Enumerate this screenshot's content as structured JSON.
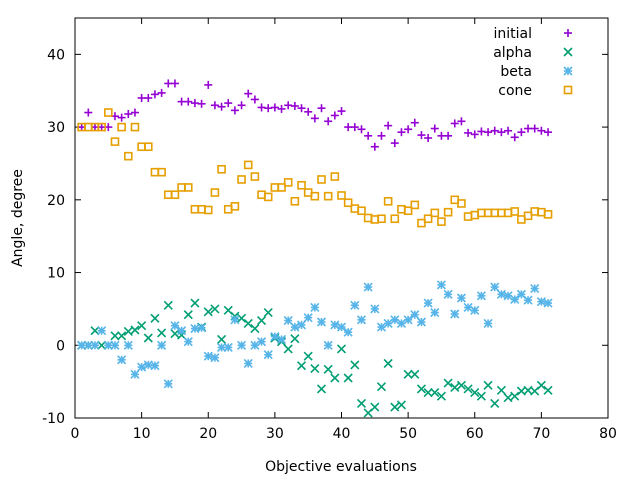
{
  "chart_data": {
    "type": "scatter",
    "title": "",
    "xlabel": "Objective evaluations",
    "ylabel": "Angle, degree",
    "xlim": [
      0,
      80
    ],
    "ylim": [
      -10,
      45
    ],
    "xticks": [
      0,
      10,
      20,
      30,
      40,
      50,
      60,
      70,
      80
    ],
    "yticks": [
      -10,
      0,
      10,
      20,
      30,
      40
    ],
    "grid": false,
    "legend_position": "top-right",
    "series": [
      {
        "name": "initial",
        "color": "#9400d3",
        "marker": "plus",
        "points": [
          [
            1,
            30
          ],
          [
            2,
            32
          ],
          [
            3,
            30
          ],
          [
            4,
            30
          ],
          [
            5,
            30
          ],
          [
            6,
            31.5
          ],
          [
            7,
            31.3
          ],
          [
            8,
            31.8
          ],
          [
            9,
            32
          ],
          [
            10,
            34
          ],
          [
            11,
            34
          ],
          [
            12,
            34.5
          ],
          [
            13,
            34.7
          ],
          [
            14,
            36
          ],
          [
            15,
            36
          ],
          [
            16,
            33.5
          ],
          [
            17,
            33.5
          ],
          [
            18,
            33.3
          ],
          [
            19,
            33.2
          ],
          [
            20,
            35.8
          ],
          [
            21,
            33
          ],
          [
            22,
            32.8
          ],
          [
            23,
            33.3
          ],
          [
            24,
            32.3
          ],
          [
            25,
            33
          ],
          [
            26,
            34.6
          ],
          [
            27,
            33.8
          ],
          [
            28,
            32.7
          ],
          [
            29,
            32.6
          ],
          [
            30,
            32.7
          ],
          [
            31,
            32.5
          ],
          [
            32,
            33
          ],
          [
            33,
            32.9
          ],
          [
            34,
            32.6
          ],
          [
            35,
            32.1
          ],
          [
            36,
            31.2
          ],
          [
            37,
            32.6
          ],
          [
            38,
            30.8
          ],
          [
            39,
            31.6
          ],
          [
            40,
            32.2
          ],
          [
            41,
            30
          ],
          [
            42,
            30
          ],
          [
            43,
            29.7
          ],
          [
            44,
            28.8
          ],
          [
            45,
            27.3
          ],
          [
            46,
            28.8
          ],
          [
            47,
            30.2
          ],
          [
            48,
            27.8
          ],
          [
            49,
            29.3
          ],
          [
            50,
            29.7
          ],
          [
            51,
            30.6
          ],
          [
            52,
            28.9
          ],
          [
            53,
            28.5
          ],
          [
            54,
            29.8
          ],
          [
            55,
            28.8
          ],
          [
            56,
            28.8
          ],
          [
            57,
            30.5
          ],
          [
            58,
            30.8
          ],
          [
            59,
            29.2
          ],
          [
            60,
            29
          ],
          [
            61,
            29.4
          ],
          [
            62,
            29.3
          ],
          [
            63,
            29.5
          ],
          [
            64,
            29.3
          ],
          [
            65,
            29.5
          ],
          [
            66,
            28.6
          ],
          [
            67,
            29.3
          ],
          [
            68,
            29.8
          ],
          [
            69,
            29.8
          ],
          [
            70,
            29.5
          ],
          [
            71,
            29.3
          ]
        ]
      },
      {
        "name": "alpha",
        "color": "#009e73",
        "marker": "x",
        "points": [
          [
            1,
            0
          ],
          [
            2,
            0
          ],
          [
            3,
            2
          ],
          [
            4,
            0
          ],
          [
            5,
            0
          ],
          [
            6,
            1.3
          ],
          [
            7,
            1.3
          ],
          [
            8,
            1.9
          ],
          [
            9,
            2.1
          ],
          [
            10,
            2.7
          ],
          [
            11,
            1
          ],
          [
            12,
            3.7
          ],
          [
            13,
            1.7
          ],
          [
            14,
            5.5
          ],
          [
            15,
            1.6
          ],
          [
            16,
            1.4
          ],
          [
            17,
            4.2
          ],
          [
            18,
            5.8
          ],
          [
            19,
            2.5
          ],
          [
            20,
            4.6
          ],
          [
            21,
            5
          ],
          [
            22,
            0.8
          ],
          [
            23,
            4.8
          ],
          [
            24,
            4
          ],
          [
            25,
            3.7
          ],
          [
            26,
            3
          ],
          [
            27,
            2.3
          ],
          [
            28,
            3.4
          ],
          [
            29,
            4.5
          ],
          [
            30,
            1
          ],
          [
            31,
            0.5
          ],
          [
            32,
            -0.5
          ],
          [
            33,
            0.9
          ],
          [
            34,
            -2.8
          ],
          [
            35,
            -1.5
          ],
          [
            36,
            -3.2
          ],
          [
            37,
            -6
          ],
          [
            38,
            -3.3
          ],
          [
            39,
            -4.5
          ],
          [
            40,
            -0.5
          ],
          [
            41,
            -4.5
          ],
          [
            42,
            -2.7
          ],
          [
            43,
            -8
          ],
          [
            44,
            -9.3
          ],
          [
            45,
            -8.5
          ],
          [
            46,
            -5.7
          ],
          [
            47,
            -2.5
          ],
          [
            48,
            -8.5
          ],
          [
            49,
            -8.2
          ],
          [
            50,
            -4
          ],
          [
            51,
            -4
          ],
          [
            52,
            -6
          ],
          [
            53,
            -6.5
          ],
          [
            54,
            -6.5
          ],
          [
            55,
            -7
          ],
          [
            56,
            -5.2
          ],
          [
            57,
            -5.8
          ],
          [
            58,
            -5.5
          ],
          [
            59,
            -6
          ],
          [
            60,
            -6.5
          ],
          [
            61,
            -7
          ],
          [
            62,
            -5.5
          ],
          [
            63,
            -8
          ],
          [
            64,
            -6.2
          ],
          [
            65,
            -7.2
          ],
          [
            66,
            -7
          ],
          [
            67,
            -6.3
          ],
          [
            68,
            -6.2
          ],
          [
            69,
            -6.3
          ],
          [
            70,
            -5.5
          ],
          [
            71,
            -6.2
          ]
        ]
      },
      {
        "name": "beta",
        "color": "#56b4e9",
        "marker": "star",
        "points": [
          [
            1,
            0
          ],
          [
            2,
            0
          ],
          [
            3,
            0
          ],
          [
            4,
            2
          ],
          [
            5,
            0
          ],
          [
            6,
            0
          ],
          [
            7,
            -2
          ],
          [
            8,
            0
          ],
          [
            9,
            -4
          ],
          [
            10,
            -3
          ],
          [
            11,
            -2.7
          ],
          [
            12,
            -2.8
          ],
          [
            13,
            0
          ],
          [
            14,
            -5.3
          ],
          [
            15,
            2.7
          ],
          [
            16,
            2
          ],
          [
            17,
            0.5
          ],
          [
            18,
            2.3
          ],
          [
            19,
            2.4
          ],
          [
            20,
            -1.5
          ],
          [
            21,
            -1.7
          ],
          [
            22,
            -0.3
          ],
          [
            23,
            -0.3
          ],
          [
            24,
            3.5
          ],
          [
            25,
            0
          ],
          [
            26,
            -2.5
          ],
          [
            27,
            0
          ],
          [
            28,
            0.5
          ],
          [
            29,
            -1.3
          ],
          [
            30,
            1.2
          ],
          [
            31,
            0.8
          ],
          [
            32,
            3.4
          ],
          [
            33,
            2.5
          ],
          [
            34,
            2.8
          ],
          [
            35,
            3.8
          ],
          [
            36,
            5.2
          ],
          [
            37,
            3.2
          ],
          [
            38,
            0
          ],
          [
            39,
            2.8
          ],
          [
            40,
            2.5
          ],
          [
            41,
            1.8
          ],
          [
            42,
            5.5
          ],
          [
            43,
            3.5
          ],
          [
            44,
            8
          ],
          [
            45,
            5
          ],
          [
            46,
            2.5
          ],
          [
            47,
            3
          ],
          [
            48,
            3.5
          ],
          [
            49,
            3
          ],
          [
            50,
            3.5
          ],
          [
            51,
            4.2
          ],
          [
            52,
            3.2
          ],
          [
            53,
            5.8
          ],
          [
            54,
            4.5
          ],
          [
            55,
            8.3
          ],
          [
            56,
            7
          ],
          [
            57,
            4.3
          ],
          [
            58,
            6.5
          ],
          [
            59,
            5.2
          ],
          [
            60,
            4.8
          ],
          [
            61,
            6.8
          ],
          [
            62,
            3
          ],
          [
            63,
            8
          ],
          [
            64,
            7
          ],
          [
            65,
            6.8
          ],
          [
            66,
            6.3
          ],
          [
            67,
            7
          ],
          [
            68,
            6.2
          ],
          [
            69,
            7.8
          ],
          [
            70,
            6
          ],
          [
            71,
            5.8
          ]
        ]
      },
      {
        "name": "cone",
        "color": "#e69f00",
        "marker": "square",
        "points": [
          [
            1,
            30
          ],
          [
            2,
            30
          ],
          [
            3,
            30
          ],
          [
            4,
            30
          ],
          [
            5,
            32
          ],
          [
            6,
            28
          ],
          [
            7,
            30
          ],
          [
            8,
            26
          ],
          [
            9,
            30
          ],
          [
            10,
            27.3
          ],
          [
            11,
            27.3
          ],
          [
            12,
            23.8
          ],
          [
            13,
            23.8
          ],
          [
            14,
            20.7
          ],
          [
            15,
            20.7
          ],
          [
            16,
            21.7
          ],
          [
            17,
            21.7
          ],
          [
            18,
            18.7
          ],
          [
            19,
            18.7
          ],
          [
            20,
            18.6
          ],
          [
            21,
            21
          ],
          [
            22,
            24.2
          ],
          [
            23,
            18.7
          ],
          [
            24,
            19.1
          ],
          [
            25,
            22.8
          ],
          [
            26,
            24.8
          ],
          [
            27,
            23.2
          ],
          [
            28,
            20.7
          ],
          [
            29,
            20.4
          ],
          [
            30,
            21.7
          ],
          [
            31,
            21.7
          ],
          [
            32,
            22.4
          ],
          [
            33,
            19.8
          ],
          [
            34,
            22
          ],
          [
            35,
            21
          ],
          [
            36,
            20.5
          ],
          [
            37,
            22.8
          ],
          [
            38,
            20.5
          ],
          [
            39,
            23.2
          ],
          [
            40,
            20.6
          ],
          [
            41,
            19.6
          ],
          [
            42,
            18.8
          ],
          [
            43,
            18.5
          ],
          [
            44,
            17.5
          ],
          [
            45,
            17.3
          ],
          [
            46,
            17.4
          ],
          [
            47,
            19.8
          ],
          [
            48,
            17.4
          ],
          [
            49,
            18.7
          ],
          [
            50,
            18.5
          ],
          [
            51,
            19.3
          ],
          [
            52,
            16.8
          ],
          [
            53,
            17.4
          ],
          [
            54,
            18.2
          ],
          [
            55,
            17
          ],
          [
            56,
            18.3
          ],
          [
            57,
            20
          ],
          [
            58,
            19.5
          ],
          [
            59,
            17.7
          ],
          [
            60,
            17.9
          ],
          [
            61,
            18.2
          ],
          [
            62,
            18.2
          ],
          [
            63,
            18.2
          ],
          [
            64,
            18.2
          ],
          [
            65,
            18.2
          ],
          [
            66,
            18.4
          ],
          [
            67,
            17.3
          ],
          [
            68,
            17.8
          ],
          [
            69,
            18.4
          ],
          [
            70,
            18.3
          ],
          [
            71,
            18
          ]
        ]
      }
    ]
  }
}
